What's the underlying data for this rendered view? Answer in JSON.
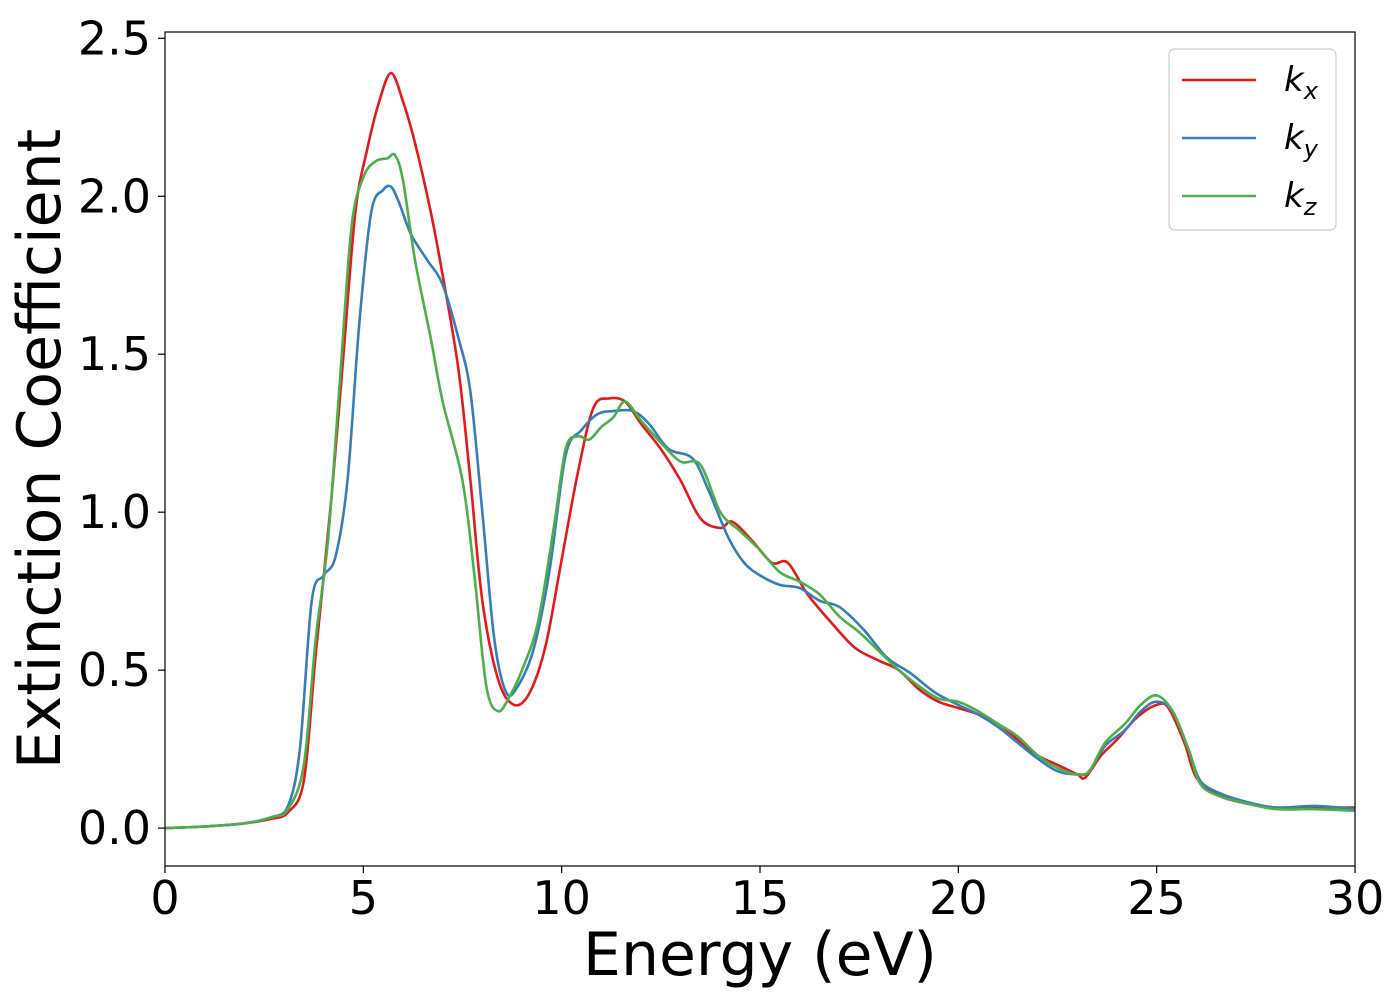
{
  "chart_data": {
    "type": "line",
    "title": "",
    "xlabel": "Energy (eV)",
    "ylabel": "Extinction Coefficient",
    "xlim": [
      0,
      30
    ],
    "ylim": [
      -0.12,
      2.52
    ],
    "xticks": [
      0,
      5,
      10,
      15,
      20,
      25,
      30
    ],
    "xtick_labels": [
      "0",
      "5",
      "10",
      "15",
      "20",
      "25",
      "30"
    ],
    "yticks": [
      0.0,
      0.5,
      1.0,
      1.5,
      2.0,
      2.5
    ],
    "ytick_labels": [
      "0.0",
      "0.5",
      "1.0",
      "1.5",
      "2.0",
      "2.5"
    ],
    "grid": false,
    "legend_position": "top-right",
    "series": [
      {
        "name": "k_x",
        "legend_base": "k",
        "legend_sub": "x",
        "color": "#e41a1c",
        "points": [
          [
            0,
            0
          ],
          [
            1,
            0.005
          ],
          [
            2,
            0.015
          ],
          [
            2.7,
            0.03
          ],
          [
            3.1,
            0.05
          ],
          [
            3.5,
            0.15
          ],
          [
            3.8,
            0.55
          ],
          [
            4.2,
            1.05
          ],
          [
            4.5,
            1.5
          ],
          [
            4.8,
            1.95
          ],
          [
            5.1,
            2.15
          ],
          [
            5.4,
            2.3
          ],
          [
            5.7,
            2.39
          ],
          [
            6.0,
            2.3
          ],
          [
            6.3,
            2.17
          ],
          [
            6.7,
            1.95
          ],
          [
            7.0,
            1.75
          ],
          [
            7.4,
            1.45
          ],
          [
            7.7,
            1.1
          ],
          [
            8.0,
            0.72
          ],
          [
            8.4,
            0.47
          ],
          [
            8.8,
            0.39
          ],
          [
            9.2,
            0.43
          ],
          [
            9.6,
            0.58
          ],
          [
            10.0,
            0.85
          ],
          [
            10.4,
            1.12
          ],
          [
            10.8,
            1.33
          ],
          [
            11.2,
            1.36
          ],
          [
            11.6,
            1.35
          ],
          [
            12.0,
            1.28
          ],
          [
            12.5,
            1.2
          ],
          [
            13.0,
            1.1
          ],
          [
            13.5,
            0.98
          ],
          [
            14.0,
            0.95
          ],
          [
            14.3,
            0.97
          ],
          [
            14.8,
            0.91
          ],
          [
            15.3,
            0.84
          ],
          [
            15.7,
            0.84
          ],
          [
            16.2,
            0.74
          ],
          [
            16.8,
            0.65
          ],
          [
            17.4,
            0.57
          ],
          [
            18.0,
            0.53
          ],
          [
            18.5,
            0.5
          ],
          [
            19.0,
            0.44
          ],
          [
            19.5,
            0.4
          ],
          [
            20.0,
            0.38
          ],
          [
            20.5,
            0.36
          ],
          [
            21.0,
            0.33
          ],
          [
            21.5,
            0.28
          ],
          [
            22.0,
            0.23
          ],
          [
            22.5,
            0.2
          ],
          [
            23.0,
            0.17
          ],
          [
            23.2,
            0.16
          ],
          [
            23.6,
            0.23
          ],
          [
            24.0,
            0.28
          ],
          [
            24.5,
            0.35
          ],
          [
            25.0,
            0.39
          ],
          [
            25.3,
            0.38
          ],
          [
            25.7,
            0.27
          ],
          [
            26.0,
            0.16
          ],
          [
            26.5,
            0.11
          ],
          [
            27.0,
            0.085
          ],
          [
            28.0,
            0.065
          ],
          [
            29.0,
            0.065
          ],
          [
            30.0,
            0.065
          ]
        ]
      },
      {
        "name": "k_y",
        "legend_base": "k",
        "legend_sub": "y",
        "color": "#377eb8",
        "points": [
          [
            0,
            0
          ],
          [
            1,
            0.005
          ],
          [
            2,
            0.015
          ],
          [
            2.7,
            0.035
          ],
          [
            3.1,
            0.07
          ],
          [
            3.4,
            0.25
          ],
          [
            3.7,
            0.72
          ],
          [
            4.0,
            0.8
          ],
          [
            4.3,
            0.86
          ],
          [
            4.6,
            1.1
          ],
          [
            4.9,
            1.6
          ],
          [
            5.2,
            1.95
          ],
          [
            5.5,
            2.02
          ],
          [
            5.7,
            2.03
          ],
          [
            5.9,
            1.98
          ],
          [
            6.2,
            1.88
          ],
          [
            6.6,
            1.8
          ],
          [
            7.0,
            1.72
          ],
          [
            7.4,
            1.55
          ],
          [
            7.7,
            1.38
          ],
          [
            8.0,
            1.0
          ],
          [
            8.3,
            0.6
          ],
          [
            8.6,
            0.43
          ],
          [
            8.9,
            0.45
          ],
          [
            9.3,
            0.57
          ],
          [
            9.7,
            0.82
          ],
          [
            10.1,
            1.18
          ],
          [
            10.5,
            1.26
          ],
          [
            10.9,
            1.31
          ],
          [
            11.3,
            1.32
          ],
          [
            11.8,
            1.32
          ],
          [
            12.2,
            1.28
          ],
          [
            12.7,
            1.2
          ],
          [
            13.3,
            1.17
          ],
          [
            13.7,
            1.07
          ],
          [
            14.2,
            0.92
          ],
          [
            14.6,
            0.84
          ],
          [
            15.0,
            0.8
          ],
          [
            15.5,
            0.77
          ],
          [
            16.0,
            0.76
          ],
          [
            16.5,
            0.72
          ],
          [
            17.0,
            0.7
          ],
          [
            17.6,
            0.63
          ],
          [
            18.2,
            0.54
          ],
          [
            18.8,
            0.49
          ],
          [
            19.4,
            0.43
          ],
          [
            20.0,
            0.39
          ],
          [
            20.5,
            0.36
          ],
          [
            21.0,
            0.32
          ],
          [
            21.5,
            0.27
          ],
          [
            22.0,
            0.22
          ],
          [
            22.5,
            0.18
          ],
          [
            23.0,
            0.17
          ],
          [
            23.3,
            0.18
          ],
          [
            23.7,
            0.26
          ],
          [
            24.2,
            0.31
          ],
          [
            24.6,
            0.37
          ],
          [
            25.0,
            0.4
          ],
          [
            25.4,
            0.37
          ],
          [
            25.8,
            0.25
          ],
          [
            26.1,
            0.15
          ],
          [
            26.6,
            0.11
          ],
          [
            27.2,
            0.085
          ],
          [
            28.0,
            0.065
          ],
          [
            29.0,
            0.07
          ],
          [
            30.0,
            0.06
          ]
        ]
      },
      {
        "name": "k_z",
        "legend_base": "k",
        "legend_sub": "z",
        "color": "#4daf4a",
        "points": [
          [
            0,
            0
          ],
          [
            1,
            0.005
          ],
          [
            2,
            0.015
          ],
          [
            2.7,
            0.035
          ],
          [
            3.1,
            0.06
          ],
          [
            3.5,
            0.2
          ],
          [
            3.8,
            0.6
          ],
          [
            4.1,
            0.9
          ],
          [
            4.4,
            1.4
          ],
          [
            4.7,
            1.9
          ],
          [
            5.0,
            2.06
          ],
          [
            5.3,
            2.11
          ],
          [
            5.6,
            2.12
          ],
          [
            5.8,
            2.13
          ],
          [
            6.0,
            2.05
          ],
          [
            6.3,
            1.8
          ],
          [
            6.7,
            1.55
          ],
          [
            7.0,
            1.35
          ],
          [
            7.5,
            1.1
          ],
          [
            7.8,
            0.8
          ],
          [
            8.1,
            0.45
          ],
          [
            8.4,
            0.37
          ],
          [
            8.7,
            0.42
          ],
          [
            9.0,
            0.5
          ],
          [
            9.4,
            0.65
          ],
          [
            9.8,
            0.95
          ],
          [
            10.1,
            1.2
          ],
          [
            10.4,
            1.24
          ],
          [
            10.7,
            1.23
          ],
          [
            11.0,
            1.27
          ],
          [
            11.3,
            1.3
          ],
          [
            11.6,
            1.35
          ],
          [
            12.0,
            1.29
          ],
          [
            12.5,
            1.22
          ],
          [
            13.0,
            1.16
          ],
          [
            13.5,
            1.15
          ],
          [
            14.0,
            1.0
          ],
          [
            14.5,
            0.94
          ],
          [
            15.0,
            0.88
          ],
          [
            15.5,
            0.81
          ],
          [
            16.0,
            0.78
          ],
          [
            16.5,
            0.74
          ],
          [
            17.0,
            0.67
          ],
          [
            17.5,
            0.62
          ],
          [
            18.0,
            0.56
          ],
          [
            18.5,
            0.5
          ],
          [
            19.0,
            0.45
          ],
          [
            19.5,
            0.41
          ],
          [
            20.0,
            0.4
          ],
          [
            20.5,
            0.37
          ],
          [
            21.0,
            0.33
          ],
          [
            21.5,
            0.29
          ],
          [
            22.0,
            0.23
          ],
          [
            22.5,
            0.19
          ],
          [
            23.0,
            0.17
          ],
          [
            23.3,
            0.18
          ],
          [
            23.7,
            0.27
          ],
          [
            24.2,
            0.33
          ],
          [
            24.6,
            0.39
          ],
          [
            25.0,
            0.42
          ],
          [
            25.4,
            0.37
          ],
          [
            25.8,
            0.25
          ],
          [
            26.1,
            0.14
          ],
          [
            26.6,
            0.1
          ],
          [
            27.2,
            0.08
          ],
          [
            28.0,
            0.06
          ],
          [
            29.0,
            0.06
          ],
          [
            30.0,
            0.055
          ]
        ]
      }
    ]
  }
}
